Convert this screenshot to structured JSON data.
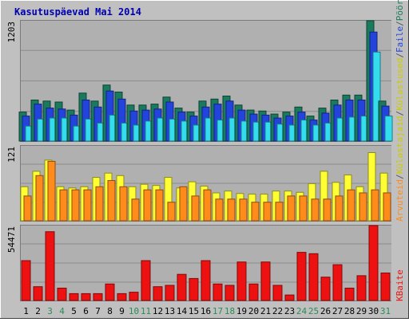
{
  "chart_data": {
    "type": "bar",
    "title": "Kasutuspäevad Mai 2014",
    "x": [
      "1",
      "2",
      "3",
      "4",
      "5",
      "6",
      "7",
      "8",
      "9",
      "10",
      "11",
      "12",
      "13",
      "14",
      "15",
      "16",
      "17",
      "18",
      "19",
      "20",
      "21",
      "22",
      "23",
      "24",
      "25",
      "26",
      "27",
      "28",
      "29",
      "30",
      "31"
    ],
    "weekend_days": [
      3,
      4,
      10,
      11,
      17,
      18,
      24,
      25,
      31
    ],
    "panels": [
      {
        "name": "hits",
        "tick_label": "1203",
        "ylim": [
          0,
          1203
        ],
        "series": [
          {
            "name": "Pöördumisi",
            "color": "#1a7a5e",
            "values": [
              290,
              410,
              400,
              390,
              310,
              480,
              400,
              560,
              490,
              360,
              360,
              370,
              440,
              330,
              290,
              400,
              420,
              450,
              360,
              310,
              300,
              270,
              290,
              340,
              250,
              330,
              410,
              460,
              460,
              1203,
              400
            ]
          },
          {
            "name": "Faile",
            "color": "#2244dd",
            "values": [
              250,
              370,
              330,
              320,
              260,
              410,
              340,
              500,
              420,
              300,
              310,
              320,
              390,
              290,
              250,
              340,
              370,
              400,
              310,
              270,
              260,
              230,
              250,
              290,
              210,
              280,
              360,
              410,
              410,
              1090,
              350
            ]
          },
          {
            "name": "Külastused",
            "color": "#33ddee",
            "values": [
              150,
              220,
              230,
              230,
              150,
              220,
              180,
              260,
              180,
              160,
              200,
              230,
              220,
              200,
              160,
              230,
              210,
              230,
              200,
              190,
              190,
              170,
              160,
              210,
              160,
              180,
              230,
              240,
              250,
              890,
              250
            ]
          }
        ]
      },
      {
        "name": "sites",
        "tick_label": "121",
        "ylim": [
          0,
          121
        ],
        "series": [
          {
            "name": "Külastajaid",
            "color": "#ffff33",
            "values": [
              55,
              80,
              98,
              55,
              53,
              55,
              70,
              77,
              73,
              55,
              59,
              57,
              70,
              53,
              63,
              56,
              45,
              48,
              44,
              43,
              43,
              48,
              48,
              46,
              60,
              80,
              62,
              74,
              55,
              110,
              77
            ]
          },
          {
            "name": "Arvuteid",
            "color": "#ff8c1a",
            "values": [
              40,
              73,
              96,
              50,
              50,
              50,
              55,
              65,
              55,
              35,
              50,
              50,
              30,
              55,
              40,
              50,
              35,
              35,
              35,
              30,
              30,
              30,
              40,
              40,
              35,
              35,
              40,
              50,
              45,
              50,
              45
            ]
          }
        ]
      },
      {
        "name": "kbytes",
        "tick_label": "54471",
        "ylim": [
          0,
          54471
        ],
        "series": [
          {
            "name": "KBaite",
            "color": "#ee1111",
            "values": [
              29000,
              10000,
              50000,
              9000,
              5000,
              5000,
              5000,
              12000,
              5000,
              6000,
              29000,
              10000,
              11000,
              19000,
              16000,
              29000,
              12000,
              11000,
              28000,
              12000,
              28000,
              11000,
              4000,
              35000,
              34000,
              17000,
              26000,
              9000,
              18000,
              54471,
              20000
            ]
          }
        ]
      }
    ],
    "legend_right": [
      {
        "text": "Pöördumisi",
        "color": "#1a7a5e"
      },
      {
        "text": "/",
        "color": "#555555"
      },
      {
        "text": "Faile",
        "color": "#2244dd"
      },
      {
        "text": "/",
        "color": "#555555"
      },
      {
        "text": "Külastused",
        "color": "#cccc00"
      },
      {
        "text": "/",
        "color": "#555555"
      },
      {
        "text": "Külastajaid",
        "color": "#cccc00"
      },
      {
        "text": "/",
        "color": "#555555"
      },
      {
        "text": "Arvuteid",
        "color": "#ff8c1a"
      }
    ],
    "legend_right_bottom": {
      "text": "KBaite",
      "color": "#ee1111"
    }
  }
}
